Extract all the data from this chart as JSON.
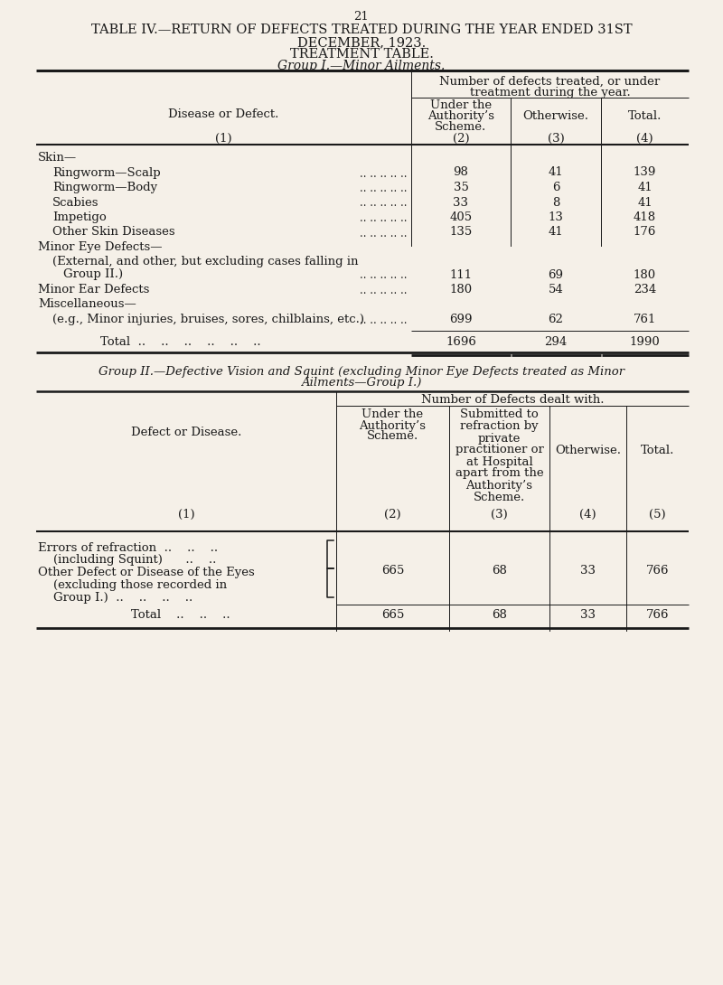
{
  "bg_color": "#f5f0e8",
  "page_number": "21",
  "title_line1": "TABLE IV.—RETURN OF DEFECTS TREATED DURING THE YEAR ENDED 31ST",
  "title_line2": "DECEMBER, 1923.",
  "title_line3": "TREATMENT TABLE.",
  "title_line4": "Group I.—Minor Ailments.",
  "group1_rows": [
    {
      "label": "Skin—",
      "indent": 0,
      "vals": [
        null,
        null,
        null
      ]
    },
    {
      "label": "Ringworm—Scalp",
      "indent": 1,
      "vals": [
        "98",
        "41",
        "139"
      ],
      "dots": true
    },
    {
      "label": "Ringworm—Body",
      "indent": 1,
      "vals": [
        "35",
        "6",
        "41"
      ],
      "dots": true
    },
    {
      "label": "Scabies",
      "indent": 1,
      "vals": [
        "33",
        "8",
        "41"
      ],
      "dots": true
    },
    {
      "label": "Impetigo",
      "indent": 1,
      "vals": [
        "405",
        "13",
        "418"
      ],
      "dots": true
    },
    {
      "label": "Other Skin Diseases",
      "indent": 1,
      "vals": [
        "135",
        "41",
        "176"
      ],
      "dots": true
    },
    {
      "label": "Minor Eye Defects—",
      "indent": 0,
      "vals": [
        null,
        null,
        null
      ]
    },
    {
      "label": "(External, and other, but excluding cases falling in",
      "indent": 1,
      "vals": [
        null,
        null,
        null
      ]
    },
    {
      "label": "Group II.)",
      "indent": 2,
      "vals": [
        "111",
        "69",
        "180"
      ],
      "dots": true
    },
    {
      "label": "Minor Ear Defects",
      "indent": 0,
      "vals": [
        "180",
        "54",
        "234"
      ],
      "dots": true
    },
    {
      "label": "Miscellaneous—",
      "indent": 0,
      "vals": [
        null,
        null,
        null
      ]
    },
    {
      "label": "(e.g., Minor injuries, bruises, sores, chilblains, etc.)",
      "indent": 1,
      "vals": [
        "699",
        "62",
        "761"
      ],
      "dots": true
    }
  ],
  "group1_total": [
    "1696",
    "294",
    "1990"
  ],
  "group2_title_line1": "Group II.—Defective Vision and Squint (excluding Minor Eye Defects treated as Minor",
  "group2_title_line2": "Ailments—Group I.)",
  "group2_header_main": "Number of Defects dealt with.",
  "group2_total": [
    "665",
    "68",
    "33",
    "766"
  ]
}
